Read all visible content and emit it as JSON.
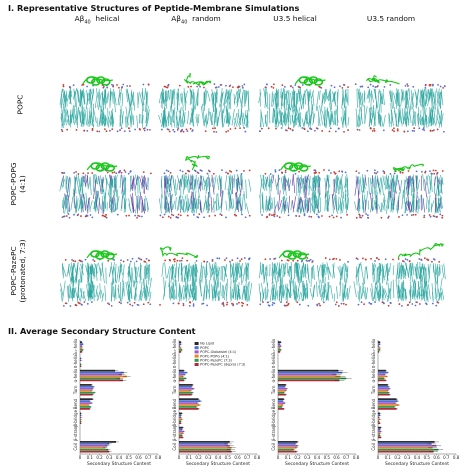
{
  "figure": {
    "section1_title": "I. Representative Structures of Peptide-Membrane Simulations",
    "section2_title": "II. Average Secondary Structure Content",
    "columns": [
      {
        "main": "Aβ",
        "sub": "40",
        "suffix": "  helical"
      },
      {
        "main": "Aβ",
        "sub": "40",
        "suffix": "  random"
      },
      {
        "main": "U3.5 helical",
        "sub": "",
        "suffix": ""
      },
      {
        "main": "U3.5 random",
        "sub": "",
        "suffix": ""
      }
    ],
    "rows": [
      {
        "line1": "POPC",
        "line2": ""
      },
      {
        "line1": "POPC-POPG",
        "line2": "(4:1)"
      },
      {
        "line1": "POPC-PazePC",
        "line2": "(protonated, 7:3)"
      }
    ],
    "colors": {
      "lipid_tail": "#2aa6a0",
      "lipid_head_red": "#d23a2a",
      "lipid_head_blue": "#5a6fd0",
      "popg": "#6a2aa8",
      "peptide": "#18c818"
    }
  },
  "chart_data": [
    {
      "type": "bar",
      "orientation": "horizontal",
      "categories": [
        "3₁₀-helix",
        "π-helix",
        "α-helix",
        "Turn",
        "Bend",
        "β-bridge",
        "β-strand",
        "Coil"
      ],
      "xlabel": "Secondary Structure Content",
      "xticks": [
        "0",
        "0.1",
        "0.2",
        "0.3",
        "0.4",
        "0.5",
        "0.6",
        "0.7",
        "0.8"
      ],
      "xlim": [
        0,
        0.8
      ],
      "series": [
        {
          "name": "No Lipid",
          "color": "#2b2b2b",
          "values": [
            0.02,
            0.0,
            0.36,
            0.12,
            0.13,
            0.01,
            0.0,
            0.37
          ]
        },
        {
          "name": "POPC",
          "color": "#4a6fd8",
          "values": [
            0.03,
            0.01,
            0.45,
            0.14,
            0.1,
            0.01,
            0.0,
            0.3
          ]
        },
        {
          "name": "POPC-POPG (4:1)",
          "color": "#a05ac8",
          "values": [
            0.02,
            0.01,
            0.43,
            0.13,
            0.12,
            0.01,
            0.0,
            0.28
          ]
        },
        {
          "name": "POPC-PazePC (7:3)",
          "color": "#e8842a",
          "values": [
            0.02,
            0.0,
            0.48,
            0.12,
            0.09,
            0.01,
            0.0,
            0.26
          ]
        },
        {
          "name": "POPC-PazePC (deprot.)",
          "color": "#2a9a4a",
          "values": [
            0.03,
            0.01,
            0.41,
            0.15,
            0.11,
            0.01,
            0.0,
            0.29
          ]
        },
        {
          "name": "POPC-PazePC (7:3)",
          "color": "#b02a3a",
          "values": [
            0.02,
            0.01,
            0.44,
            0.13,
            0.1,
            0.01,
            0.0,
            0.3
          ]
        }
      ]
    },
    {
      "type": "bar",
      "orientation": "horizontal",
      "categories": [
        "3₁₀-helix",
        "π-helix",
        "α-helix",
        "Turn",
        "Bend",
        "β-bridge",
        "β-strand",
        "Coil"
      ],
      "xlabel": "Secondary Structure Content",
      "xticks": [
        "0",
        "0.1",
        "0.2",
        "0.3",
        "0.4",
        "0.5",
        "0.6",
        "0.7",
        "0.8"
      ],
      "xlim": [
        0,
        0.8
      ],
      "legend": [
        "No Lipid",
        "POPC",
        "POPC-Globalsiel (4:1)",
        "POPC-POPG (4:1)",
        "POPC-PazePC (7:3)",
        "POPC-PazePC (depro) (7:3)"
      ],
      "series": [
        {
          "name": "No Lipid",
          "color": "#2b2b2b",
          "values": [
            0.02,
            0.0,
            0.05,
            0.14,
            0.2,
            0.03,
            0.04,
            0.52
          ]
        },
        {
          "name": "POPC",
          "color": "#4a6fd8",
          "values": [
            0.02,
            0.0,
            0.08,
            0.13,
            0.22,
            0.02,
            0.03,
            0.5
          ]
        },
        {
          "name": "POPC-Globalsiel (4:1)",
          "color": "#a05ac8",
          "values": [
            0.01,
            0.0,
            0.06,
            0.15,
            0.19,
            0.02,
            0.05,
            0.52
          ]
        },
        {
          "name": "POPC-POPG (4:1)",
          "color": "#e8842a",
          "values": [
            0.02,
            0.0,
            0.04,
            0.12,
            0.21,
            0.03,
            0.04,
            0.54
          ]
        },
        {
          "name": "POPC-PazePC (7:3)",
          "color": "#2a9a4a",
          "values": [
            0.03,
            0.0,
            0.07,
            0.14,
            0.18,
            0.02,
            0.03,
            0.53
          ]
        },
        {
          "name": "POPC-PazePC (depro) (7:3)",
          "color": "#b02a3a",
          "values": [
            0.02,
            0.0,
            0.05,
            0.13,
            0.2,
            0.02,
            0.04,
            0.54
          ]
        }
      ]
    },
    {
      "type": "bar",
      "orientation": "horizontal",
      "categories": [
        "3₁₀-helix",
        "π-helix",
        "α-helix",
        "Turn",
        "Bend",
        "β-bridge",
        "β-strand",
        "Coil"
      ],
      "xlabel": "Secondary Structure Content",
      "xticks": [
        "0",
        "0.1",
        "0.2",
        "0.3",
        "0.4",
        "0.5",
        "0.6",
        "0.7",
        "0.8"
      ],
      "xlim": [
        0,
        0.8
      ],
      "series": [
        {
          "name": "No Lipid",
          "color": "#2b2b2b",
          "values": [
            0.03,
            0.0,
            0.62,
            0.08,
            0.06,
            0.0,
            0.0,
            0.2
          ]
        },
        {
          "name": "POPC",
          "color": "#4a6fd8",
          "values": [
            0.02,
            0.0,
            0.66,
            0.07,
            0.05,
            0.0,
            0.0,
            0.18
          ]
        },
        {
          "name": "POPC-POPG (4:1)",
          "color": "#a05ac8",
          "values": [
            0.03,
            0.0,
            0.6,
            0.09,
            0.07,
            0.0,
            0.0,
            0.2
          ]
        },
        {
          "name": "POPC-PazePC (7:3)",
          "color": "#e8842a",
          "values": [
            0.02,
            0.0,
            0.64,
            0.08,
            0.05,
            0.0,
            0.0,
            0.19
          ]
        },
        {
          "name": "POPC-PazePC (deprot.)",
          "color": "#2a9a4a",
          "values": [
            0.03,
            0.0,
            0.7,
            0.06,
            0.04,
            0.0,
            0.0,
            0.16
          ]
        },
        {
          "name": "POPC-PazePC (7:3)",
          "color": "#b02a3a",
          "values": [
            0.02,
            0.0,
            0.63,
            0.08,
            0.06,
            0.0,
            0.0,
            0.19
          ]
        }
      ]
    },
    {
      "type": "bar",
      "orientation": "horizontal",
      "categories": [
        "3₁₀-helix",
        "π-helix",
        "α-helix",
        "Turn",
        "Bend",
        "β-bridge",
        "β-strand",
        "Coil"
      ],
      "xlabel": "Secondary Structure Content",
      "xticks": [
        "0",
        "0.1",
        "0.2",
        "0.3",
        "0.4",
        "0.5",
        "0.6",
        "0.7",
        "0.8"
      ],
      "xlim": [
        0,
        0.8
      ],
      "series": [
        {
          "name": "No Lipid",
          "color": "#2b2b2b",
          "values": [
            0.02,
            0.0,
            0.08,
            0.1,
            0.19,
            0.02,
            0.03,
            0.58
          ]
        },
        {
          "name": "POPC",
          "color": "#4a6fd8",
          "values": [
            0.02,
            0.0,
            0.1,
            0.11,
            0.2,
            0.02,
            0.02,
            0.55
          ]
        },
        {
          "name": "POPC-POPG (4:1)",
          "color": "#a05ac8",
          "values": [
            0.01,
            0.0,
            0.07,
            0.12,
            0.18,
            0.01,
            0.03,
            0.6
          ]
        },
        {
          "name": "POPC-PazePC (7:3)",
          "color": "#e8842a",
          "values": [
            0.02,
            0.0,
            0.09,
            0.1,
            0.21,
            0.02,
            0.02,
            0.56
          ]
        },
        {
          "name": "POPC-PazePC (deprot.)",
          "color": "#2a9a4a",
          "values": [
            0.02,
            0.0,
            0.06,
            0.11,
            0.17,
            0.01,
            0.02,
            0.62
          ]
        },
        {
          "name": "POPC-PazePC (7:3)",
          "color": "#b02a3a",
          "values": [
            0.01,
            0.0,
            0.08,
            0.12,
            0.19,
            0.02,
            0.03,
            0.57
          ]
        }
      ]
    }
  ]
}
